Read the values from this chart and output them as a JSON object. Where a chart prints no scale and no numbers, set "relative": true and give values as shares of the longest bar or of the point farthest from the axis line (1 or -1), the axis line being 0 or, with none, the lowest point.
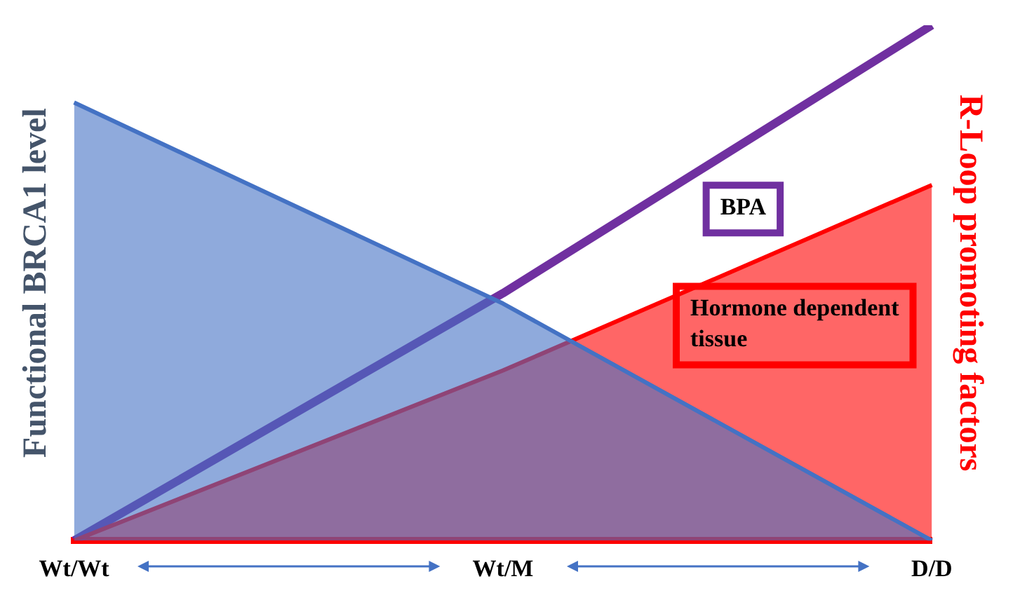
{
  "chart_data": {
    "type": "area",
    "relative": true,
    "categories": [
      "Wt/Wt",
      "Wt/M",
      "D/D"
    ],
    "ylabel": "Functional BRCA1 level",
    "y2label": "R-Loop promoting factors",
    "legend": false,
    "grid": false,
    "series": [
      {
        "color": "#4472c4",
        "values": [
          0.85,
          0.46,
          0
        ]
      },
      {
        "name": "Hormone dependent tissue",
        "color": "#ff0000",
        "values": [
          0,
          0.33,
          0.69
        ]
      },
      {
        "type": "line",
        "name": "BPA",
        "color": "#7030a0",
        "values": [
          0,
          0.48,
          1
        ]
      }
    ]
  }
}
